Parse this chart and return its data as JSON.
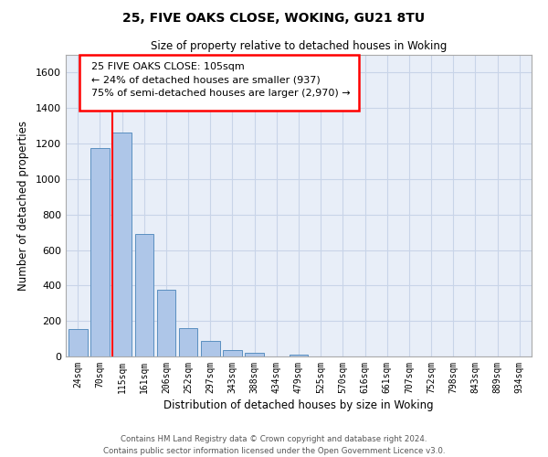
{
  "title1": "25, FIVE OAKS CLOSE, WOKING, GU21 8TU",
  "title2": "Size of property relative to detached houses in Woking",
  "xlabel": "Distribution of detached houses by size in Woking",
  "ylabel": "Number of detached properties",
  "bin_labels": [
    "24sqm",
    "70sqm",
    "115sqm",
    "161sqm",
    "206sqm",
    "252sqm",
    "297sqm",
    "343sqm",
    "388sqm",
    "434sqm",
    "479sqm",
    "525sqm",
    "570sqm",
    "616sqm",
    "661sqm",
    "707sqm",
    "752sqm",
    "798sqm",
    "843sqm",
    "889sqm",
    "934sqm"
  ],
  "bar_values": [
    155,
    1175,
    1260,
    690,
    375,
    160,
    90,
    35,
    22,
    0,
    12,
    0,
    0,
    0,
    0,
    0,
    0,
    0,
    0,
    0,
    0
  ],
  "bar_color": "#aec6e8",
  "bar_edge_color": "#5a8fc0",
  "grid_color": "#c8d4e8",
  "background_color": "#e8eef8",
  "red_line_bin": 2,
  "ylim": [
    0,
    1700
  ],
  "yticks": [
    0,
    200,
    400,
    600,
    800,
    1000,
    1200,
    1400,
    1600
  ],
  "ann_line1": "25 FIVE OAKS CLOSE: 105sqm",
  "ann_line2": "← 24% of detached houses are smaller (937)",
  "ann_line3": "75% of semi-detached houses are larger (2,970) →",
  "footer1": "Contains HM Land Registry data © Crown copyright and database right 2024.",
  "footer2": "Contains public sector information licensed under the Open Government Licence v3.0."
}
